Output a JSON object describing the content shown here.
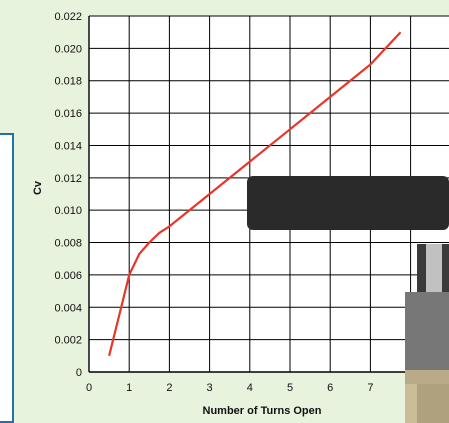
{
  "chart_data": {
    "type": "line",
    "title": "",
    "xlabel": "Number of Turns Open",
    "ylabel": "Cv",
    "xlim": [
      0,
      8
    ],
    "ylim": [
      0,
      0.022
    ],
    "grid": true,
    "x_ticks": [
      "0",
      "1",
      "2",
      "3",
      "4",
      "5",
      "6",
      "7"
    ],
    "y_ticks": [
      "0",
      "0.002",
      "0.004",
      "0.006",
      "0.008",
      "0.010",
      "0.012",
      "0.014",
      "0.016",
      "0.018",
      "0.020",
      "0.022"
    ],
    "series": [
      {
        "color": "#e8362b",
        "x": [
          0.5,
          0.75,
          1.0,
          1.25,
          1.5,
          1.75,
          2.0,
          3.0,
          4.0,
          5.0,
          6.0,
          7.0,
          7.75
        ],
        "y": [
          0.001,
          0.0035,
          0.006,
          0.0073,
          0.008,
          0.0086,
          0.009,
          0.011,
          0.013,
          0.015,
          0.017,
          0.019,
          0.021
        ]
      }
    ]
  },
  "colors": {
    "page_background": "#e8f3de",
    "plot_background": "#ffffff",
    "grid_line": "#000000",
    "series_line": "#e8362b",
    "overlay_bar": "#2a2a2a",
    "callout_border": "#1e72ad"
  }
}
